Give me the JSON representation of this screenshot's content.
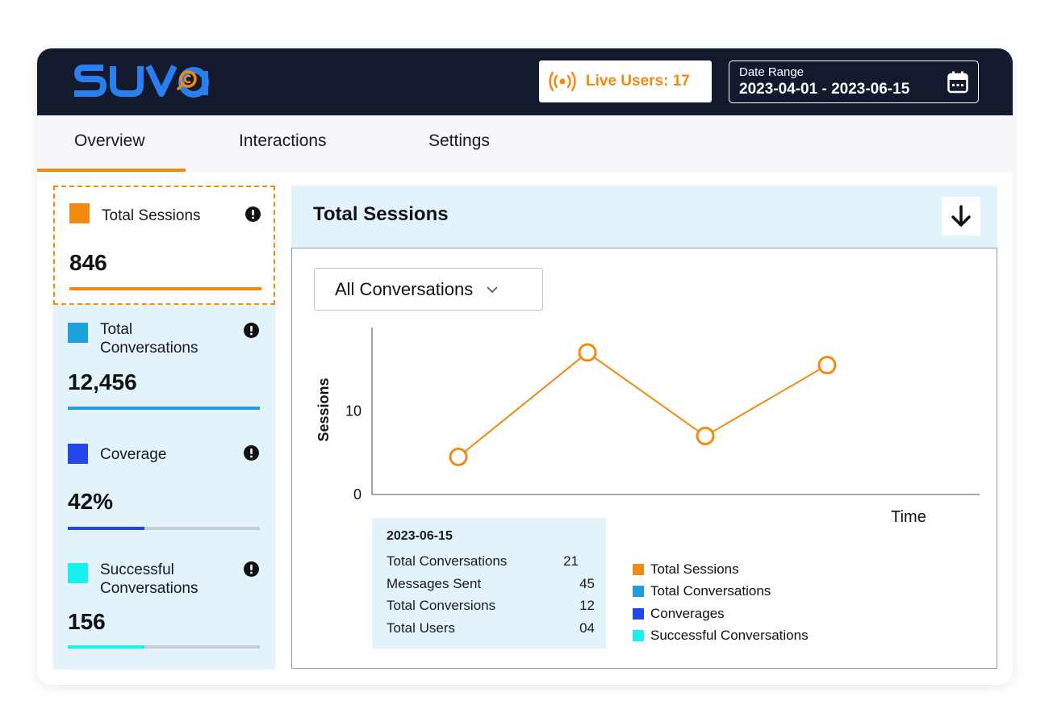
{
  "app": {
    "logo_text": "SUVA",
    "live_users": "Live Users: 17",
    "date_range": {
      "label": "Date Range",
      "value": "2023-04-01 - 2023-06-15"
    }
  },
  "tabs": [
    {
      "label": "Overview",
      "active": true
    },
    {
      "label": "Interactions",
      "active": false
    },
    {
      "label": "Settings",
      "active": false
    }
  ],
  "metrics": [
    {
      "label": "Total Sessions",
      "value": "846",
      "color": "#f28a12",
      "bar_fill": 1.0,
      "selected": true
    },
    {
      "label": "Total Conversations",
      "value": "12,456",
      "color": "#1ea0dc",
      "bar_fill": 1.0,
      "selected": false
    },
    {
      "label": "Coverage",
      "value": "42%",
      "color": "#2446e8",
      "bar_fill": 0.4,
      "selected": false
    },
    {
      "label": "Successful Conversations",
      "value": "156",
      "color": "#19f0f0",
      "bar_fill": 0.4,
      "selected": false
    }
  ],
  "panel": {
    "title": "Total Sessions",
    "dropdown_value": "All Conversations"
  },
  "chart_data": {
    "type": "line",
    "ylabel": "Sessions",
    "xlabel": "Time",
    "y_ticks": [
      "0",
      "10"
    ],
    "ylim": [
      0,
      20
    ],
    "series": [
      {
        "values": [
          4.5,
          17,
          7,
          15.5
        ],
        "color": "#f28a12"
      }
    ],
    "legend": [
      {
        "label": "Total Sessions",
        "color": "#f28a12"
      },
      {
        "label": "Total Conversations",
        "color": "#1ea0dc"
      },
      {
        "label": "Converages",
        "color": "#2446e8"
      },
      {
        "label": "Successful Conversations",
        "color": "#19f0f0"
      }
    ],
    "tooltip": {
      "date": "2023-06-15",
      "rows": [
        {
          "label": "Total Conversations",
          "value": "21"
        },
        {
          "label": "Messages Sent",
          "value": "45"
        },
        {
          "label": "Total Conversions",
          "value": "12"
        },
        {
          "label": "Total Users",
          "value": "04"
        }
      ]
    }
  }
}
